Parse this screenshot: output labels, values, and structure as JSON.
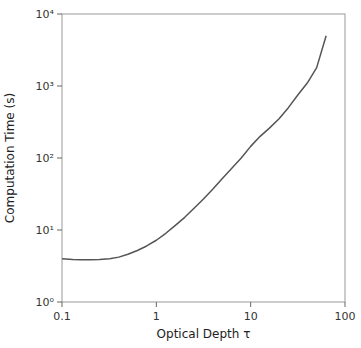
{
  "chart_data": {
    "type": "line",
    "xlabel": "Optical Depth τ",
    "ylabel": "Computation Time (s)",
    "x": [
      0.1,
      0.13,
      0.16,
      0.2,
      0.25,
      0.32,
      0.4,
      0.5,
      0.63,
      0.79,
      1.0,
      1.26,
      1.58,
      2.0,
      2.51,
      3.16,
      3.98,
      5.01,
      6.31,
      7.94,
      10.0,
      12.6,
      15.8,
      20.0,
      25.1,
      31.6,
      39.8,
      50.1,
      63.1
    ],
    "values": [
      4.0,
      3.9,
      3.85,
      3.85,
      3.9,
      4.0,
      4.2,
      4.6,
      5.2,
      6.0,
      7.2,
      9.0,
      11.5,
      15.0,
      20.0,
      27.0,
      37.0,
      52.0,
      72.0,
      100.0,
      145.0,
      200.0,
      260.0,
      350.0,
      500.0,
      750.0,
      1100.0,
      1800.0,
      5000.0
    ],
    "color": "#555555",
    "xlim": [
      0.1,
      100
    ],
    "ylim": [
      1,
      10000
    ],
    "xticks": [
      0.1,
      1,
      10,
      100
    ],
    "yticks": [
      {
        "value": 1,
        "label": "10⁰"
      },
      {
        "value": 10,
        "label": "10¹"
      },
      {
        "value": 100,
        "label": "10²"
      },
      {
        "value": 1000,
        "label": "10³"
      },
      {
        "value": 10000,
        "label": "10⁴"
      }
    ],
    "log": true,
    "grid": false
  }
}
